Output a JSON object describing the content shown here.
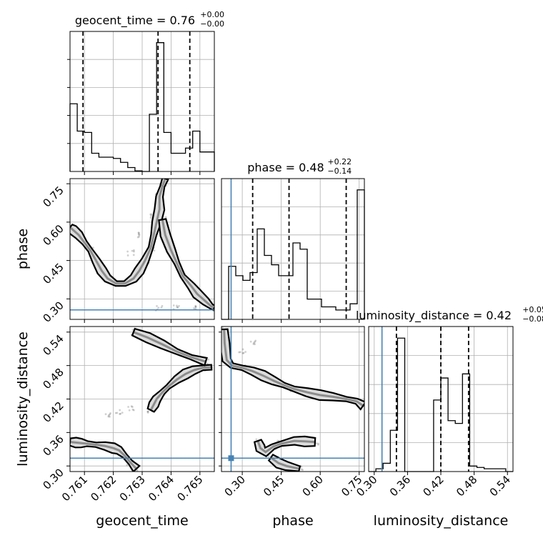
{
  "chart_data": {
    "type": "corner",
    "parameters": [
      "geocent_time",
      "phase",
      "luminosity_distance"
    ],
    "titles": [
      {
        "name": "geocent_time",
        "value": "0.76",
        "plus": "+0.00",
        "minus": "−0.00"
      },
      {
        "name": "phase",
        "value": "0.48",
        "plus": "+0.22",
        "minus": "−0.14"
      },
      {
        "name": "luminosity_distance",
        "value": "0.42",
        "plus": "+0.05",
        "minus": "−0.08"
      }
    ],
    "axes": {
      "geocent_time": {
        "range": [
          0.7605,
          0.7655
        ],
        "ticks": [
          0.761,
          0.762,
          0.763,
          0.764,
          0.765
        ],
        "tick_labels": [
          "0.761",
          "0.762",
          "0.763",
          "0.764",
          "0.765"
        ]
      },
      "phase": {
        "range": [
          0.22,
          0.77
        ],
        "ticks": [
          0.3,
          0.45,
          0.6,
          0.75
        ],
        "tick_labels": [
          "0.30",
          "0.45",
          "0.60",
          "0.75"
        ]
      },
      "luminosity_distance": {
        "range": [
          0.29,
          0.55
        ],
        "ticks": [
          0.3,
          0.36,
          0.42,
          0.48,
          0.54
        ],
        "tick_labels": [
          "0.30",
          "0.36",
          "0.42",
          "0.48",
          "0.54"
        ]
      }
    },
    "truths": {
      "geocent_time": null,
      "phase": 0.257,
      "luminosity_distance": 0.314
    },
    "quantiles": {
      "geocent_time": [
        0.76095,
        0.76355,
        0.76465
      ],
      "phase": [
        0.34,
        0.48,
        0.7
      ],
      "luminosity_distance": [
        0.34,
        0.42,
        0.47
      ]
    },
    "histograms": {
      "geocent_time": {
        "edges": [
          0.7605,
          0.76075,
          0.761,
          0.76125,
          0.7615,
          0.76175,
          0.762,
          0.76225,
          0.7625,
          0.76275,
          0.763,
          0.76325,
          0.7635,
          0.76375,
          0.764,
          0.76425,
          0.7645,
          0.76475,
          0.765,
          0.76525,
          0.7655
        ],
        "counts": [
          0.52,
          0.31,
          0.3,
          0.14,
          0.11,
          0.11,
          0.1,
          0.07,
          0.03,
          0.005,
          0.0,
          0.44,
          0.99,
          0.3,
          0.14,
          0.14,
          0.18,
          0.31,
          0.15,
          0.15
        ]
      },
      "phase": {
        "edges": [
          0.22,
          0.2475,
          0.275,
          0.3025,
          0.33,
          0.3575,
          0.385,
          0.4125,
          0.44,
          0.4675,
          0.495,
          0.5225,
          0.55,
          0.5775,
          0.605,
          0.6325,
          0.66,
          0.6875,
          0.715,
          0.7425,
          0.77
        ],
        "counts": [
          0.0,
          0.34,
          0.28,
          0.25,
          0.3,
          0.58,
          0.41,
          0.35,
          0.28,
          0.28,
          0.49,
          0.45,
          0.13,
          0.13,
          0.08,
          0.08,
          0.06,
          0.06,
          0.1,
          0.83
        ]
      },
      "luminosity_distance": {
        "edges": [
          0.29,
          0.303,
          0.316,
          0.329,
          0.342,
          0.355,
          0.368,
          0.381,
          0.394,
          0.407,
          0.42,
          0.433,
          0.446,
          0.459,
          0.472,
          0.485,
          0.498,
          0.511,
          0.524,
          0.537,
          0.55
        ],
        "counts": [
          0.0,
          0.02,
          0.06,
          0.3,
          0.97,
          0.0,
          0.0,
          0.0,
          0.0,
          0.52,
          0.68,
          0.37,
          0.35,
          0.71,
          0.04,
          0.03,
          0.02,
          0.02,
          0.02,
          0.0
        ]
      }
    },
    "samples_2d": {
      "phase_vs_geocent_time": [
        [
          0.7605,
          0.58
        ],
        [
          0.7606,
          0.57
        ],
        [
          0.7608,
          0.55
        ],
        [
          0.761,
          0.52
        ],
        [
          0.7612,
          0.49
        ],
        [
          0.7614,
          0.45
        ],
        [
          0.7616,
          0.41
        ],
        [
          0.7618,
          0.38
        ],
        [
          0.7621,
          0.36
        ],
        [
          0.7624,
          0.36
        ],
        [
          0.7627,
          0.38
        ],
        [
          0.7629,
          0.41
        ],
        [
          0.7631,
          0.45
        ],
        [
          0.7633,
          0.5
        ],
        [
          0.7634,
          0.55
        ],
        [
          0.7635,
          0.6
        ],
        [
          0.7636,
          0.65
        ],
        [
          0.7636,
          0.7
        ],
        [
          0.7637,
          0.74
        ],
        [
          0.7638,
          0.77
        ],
        [
          0.7637,
          0.61
        ],
        [
          0.7638,
          0.55
        ],
        [
          0.764,
          0.49
        ],
        [
          0.7642,
          0.44
        ],
        [
          0.7644,
          0.39
        ],
        [
          0.7647,
          0.35
        ],
        [
          0.7649,
          0.32
        ],
        [
          0.7652,
          0.29
        ],
        [
          0.7654,
          0.27
        ],
        [
          0.7655,
          0.265
        ],
        [
          0.7628,
          0.55
        ],
        [
          0.7626,
          0.48
        ],
        [
          0.7634,
          0.62
        ],
        [
          0.7648,
          0.27
        ],
        [
          0.7642,
          0.265
        ],
        [
          0.7636,
          0.262
        ]
      ],
      "luminosity_distance_vs_geocent_time": [
        [
          0.7605,
          0.343
        ],
        [
          0.7607,
          0.342
        ],
        [
          0.7609,
          0.341
        ],
        [
          0.7611,
          0.34
        ],
        [
          0.7614,
          0.338
        ],
        [
          0.7617,
          0.336
        ],
        [
          0.762,
          0.332
        ],
        [
          0.7622,
          0.328
        ],
        [
          0.7624,
          0.318
        ],
        [
          0.7626,
          0.306
        ],
        [
          0.7628,
          0.295
        ],
        [
          0.7633,
          0.4
        ],
        [
          0.7634,
          0.41
        ],
        [
          0.7635,
          0.42
        ],
        [
          0.7637,
          0.432
        ],
        [
          0.7639,
          0.442
        ],
        [
          0.7642,
          0.455
        ],
        [
          0.7645,
          0.465
        ],
        [
          0.7648,
          0.472
        ],
        [
          0.7651,
          0.476
        ],
        [
          0.7654,
          0.477
        ],
        [
          0.7627,
          0.54
        ],
        [
          0.7632,
          0.53
        ],
        [
          0.7637,
          0.518
        ],
        [
          0.7642,
          0.505
        ],
        [
          0.7647,
          0.495
        ],
        [
          0.7652,
          0.487
        ],
        [
          0.7626,
          0.402
        ],
        [
          0.7622,
          0.396
        ],
        [
          0.7618,
          0.39
        ]
      ],
      "luminosity_distance_vs_phase": [
        [
          0.23,
          0.545
        ],
        [
          0.232,
          0.52
        ],
        [
          0.24,
          0.49
        ],
        [
          0.26,
          0.48
        ],
        [
          0.3,
          0.476
        ],
        [
          0.34,
          0.47
        ],
        [
          0.38,
          0.462
        ],
        [
          0.42,
          0.453
        ],
        [
          0.46,
          0.445
        ],
        [
          0.5,
          0.438
        ],
        [
          0.55,
          0.432
        ],
        [
          0.6,
          0.427
        ],
        [
          0.65,
          0.424
        ],
        [
          0.7,
          0.42
        ],
        [
          0.74,
          0.416
        ],
        [
          0.765,
          0.408
        ],
        [
          0.36,
          0.345
        ],
        [
          0.37,
          0.332
        ],
        [
          0.39,
          0.325
        ],
        [
          0.42,
          0.335
        ],
        [
          0.45,
          0.34
        ],
        [
          0.5,
          0.345
        ],
        [
          0.54,
          0.344
        ],
        [
          0.58,
          0.343
        ],
        [
          0.41,
          0.315
        ],
        [
          0.44,
          0.305
        ],
        [
          0.47,
          0.3
        ],
        [
          0.52,
          0.295
        ],
        [
          0.3,
          0.505
        ],
        [
          0.34,
          0.52
        ]
      ]
    }
  }
}
